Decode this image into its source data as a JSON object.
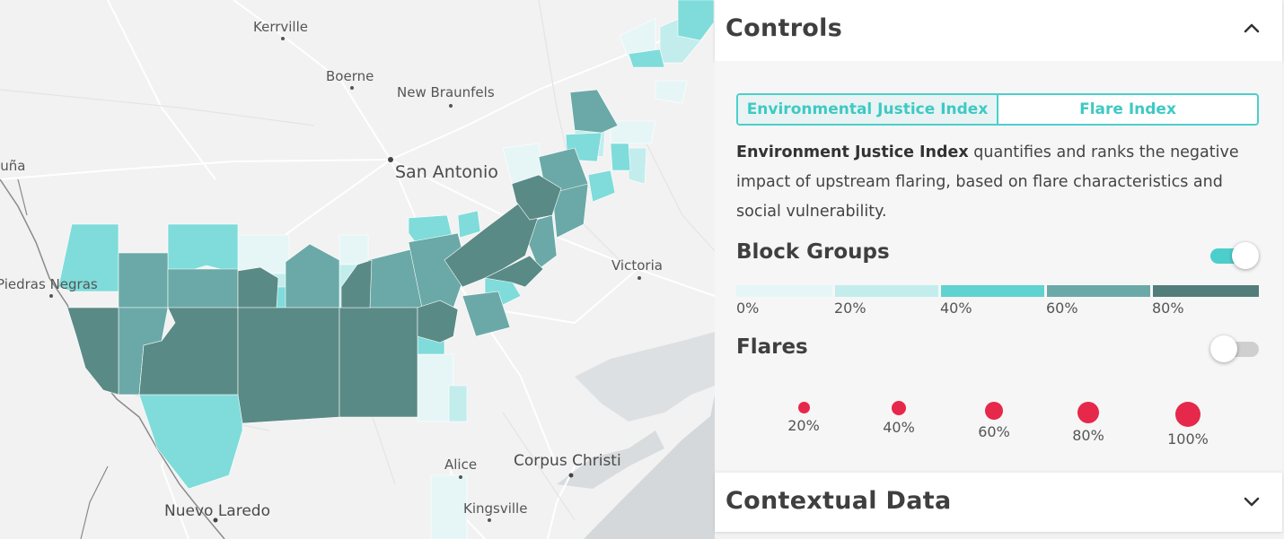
{
  "map": {
    "cities": [
      {
        "name": "Kerrville"
      },
      {
        "name": "Boerne"
      },
      {
        "name": "New Braunfels"
      },
      {
        "name": "San Antonio"
      },
      {
        "name": "Victoria"
      },
      {
        "name": "Piedras Negras"
      },
      {
        "name": "Acuña"
      },
      {
        "name": "Alice"
      },
      {
        "name": "Corpus Christi"
      },
      {
        "name": "Kingsville"
      },
      {
        "name": "Nuevo Laredo"
      }
    ],
    "colors": {
      "land": "#f2f2f2",
      "water": "#d4d8da",
      "roads": "#ffffff",
      "border": "#8a8a8a",
      "c0": "#e6f6f6",
      "c1": "#c3eded",
      "c2": "#7fdcda",
      "c3": "#6aa9a7",
      "c4": "#5a8a86"
    }
  },
  "controls": {
    "title": "Controls",
    "tabs": [
      {
        "label": "Environmental Justice Index",
        "active": true
      },
      {
        "label": "Flare Index",
        "active": false
      }
    ],
    "description_bold": "Environment Justice Index",
    "description_rest": " quantifies and ranks the negative impact of upstream flaring, based on flare characteristics and social vulnerability.",
    "block_groups": {
      "title": "Block Groups",
      "enabled": true,
      "legend": [
        {
          "label": "0%",
          "color": "#e6f6f6"
        },
        {
          "label": "20%",
          "color": "#c3eded"
        },
        {
          "label": "40%",
          "color": "#5fd3d0"
        },
        {
          "label": "60%",
          "color": "#6aa9a7"
        },
        {
          "label": "80%",
          "color": "#537d7a"
        }
      ]
    },
    "flares": {
      "title": "Flares",
      "enabled": false,
      "sizes": [
        {
          "label": "20%",
          "value": 20
        },
        {
          "label": "40%",
          "value": 40
        },
        {
          "label": "60%",
          "value": 60
        },
        {
          "label": "80%",
          "value": 80
        },
        {
          "label": "100%",
          "value": 100
        }
      ],
      "color": "#e6284a"
    }
  },
  "contextual": {
    "title": "Contextual Data"
  }
}
